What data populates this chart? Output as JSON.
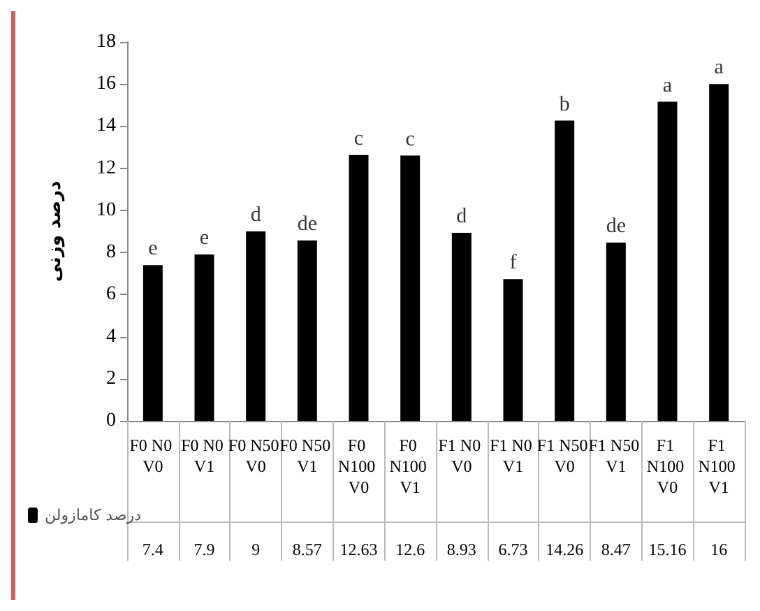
{
  "chart_data": {
    "type": "bar",
    "ylabel": "درصد وزنی",
    "categories": [
      "F0 N0 V0",
      "F0 N0 V1",
      "F0 N50 V0",
      "F0 N50 V1",
      "F0 N100 V0",
      "F0 N100 V1",
      "F1 N0 V0",
      "F1 N0 V1",
      "F1 N50 V0",
      "F1 N50 V1",
      "F1 N100 V0",
      "F1 N100 V1"
    ],
    "series": [
      {
        "name": "درصد کامازولن",
        "color": "#000000",
        "values": [
          7.4,
          7.9,
          9,
          8.57,
          12.63,
          12.6,
          8.93,
          6.73,
          14.26,
          8.47,
          15.16,
          16
        ]
      }
    ],
    "ylim": [
      0,
      18
    ],
    "yticks": [
      0,
      2,
      4,
      6,
      8,
      10,
      12,
      14,
      16,
      18
    ],
    "grid": false,
    "legend": "bottom left",
    "data_labels": true,
    "annotations": [
      {
        "text": "e",
        "x": "F0 N0 V0",
        "y": 7.4
      },
      {
        "text": "e",
        "x": "F0 N0 V1",
        "y": 7.9
      },
      {
        "text": "d",
        "x": "F0 N50 V0",
        "y": 9
      },
      {
        "text": "de",
        "x": "F0 N50 V1",
        "y": 8.57
      },
      {
        "text": "c",
        "x": "F0 N100 V0",
        "y": 12.63
      },
      {
        "text": "c",
        "x": "F0 N100 V1",
        "y": 12.6
      },
      {
        "text": "d",
        "x": "F1 N0 V0",
        "y": 8.93
      },
      {
        "text": "f",
        "x": "F1 N0 V1",
        "y": 6.73
      },
      {
        "text": "b",
        "x": "F1 N50 V0",
        "y": 14.26
      },
      {
        "text": "de",
        "x": "F1 N50 V1",
        "y": 8.47
      },
      {
        "text": "a",
        "x": "F1 N100 V0",
        "y": 15.16
      },
      {
        "text": "a",
        "x": "F1 N100 V1",
        "y": 16
      }
    ]
  }
}
